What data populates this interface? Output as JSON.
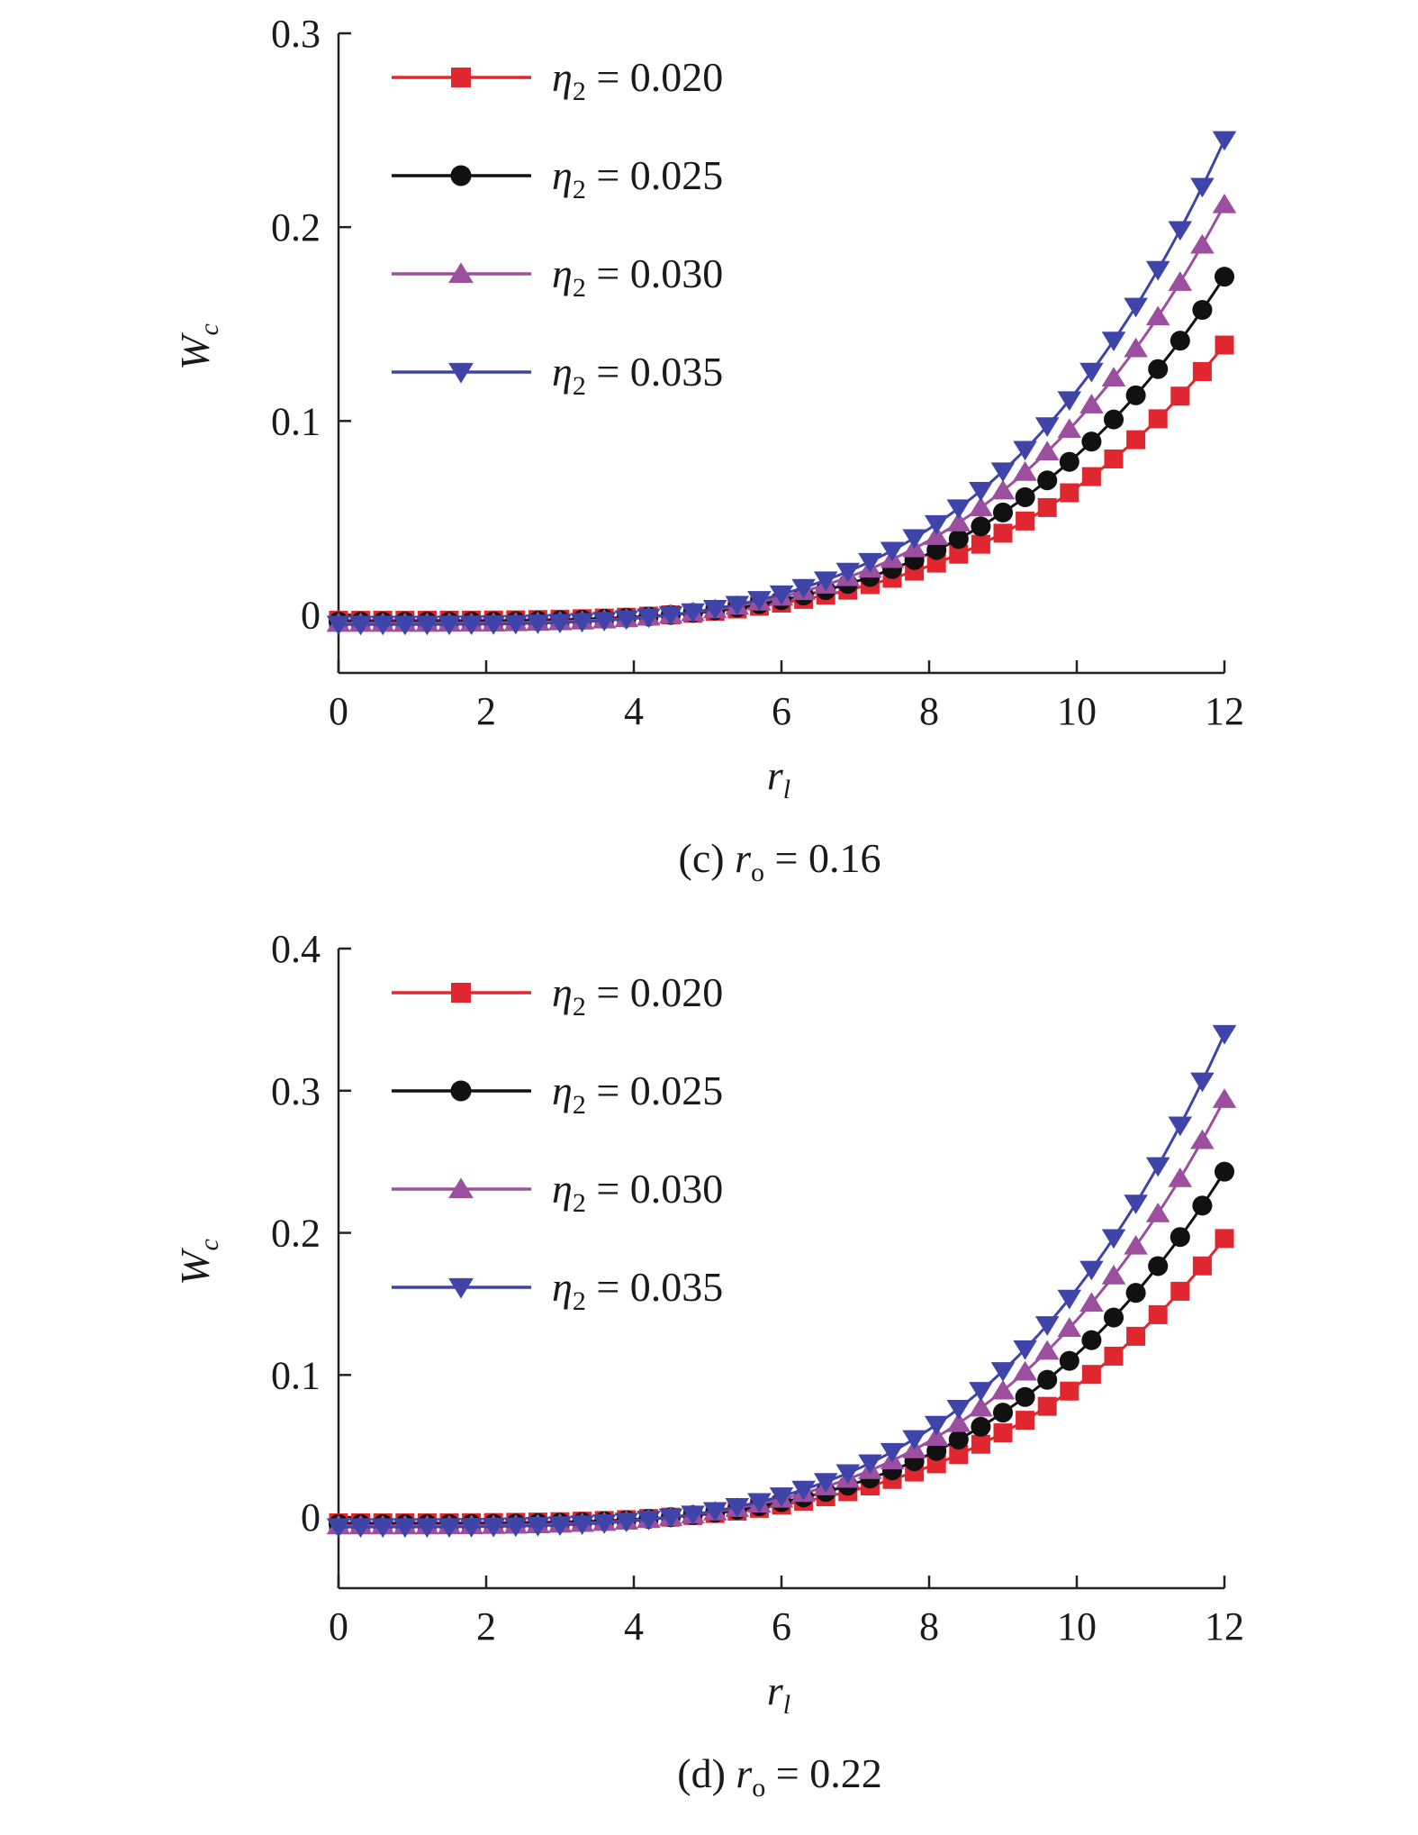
{
  "chart_data": [
    {
      "type": "line",
      "caption": {
        "prefix": "(c) ",
        "sym": "r",
        "sub": "o",
        "rest": " = 0.16"
      },
      "xlabel": {
        "sym": "r",
        "sub": "l"
      },
      "ylabel": {
        "sym": "W",
        "sub": "c"
      },
      "xlim": [
        0,
        12
      ],
      "ylim": [
        -0.03,
        0.3
      ],
      "x_ticks": [
        0,
        2,
        4,
        6,
        8,
        10,
        12
      ],
      "y_ticks": [
        0,
        0.1,
        0.2,
        0.3
      ],
      "x_tick_labels": [
        "0",
        "2",
        "4",
        "6",
        "8",
        "10",
        "12"
      ],
      "y_tick_labels": [
        "0",
        "0.1",
        "0.2",
        "0.3"
      ],
      "legend_position": "top-left",
      "grid": false,
      "series": [
        {
          "name": "η2 = 0.020",
          "label": {
            "sym": "η",
            "sub": "2",
            "rest": " = 0.020"
          },
          "color": "#e0262e",
          "marker": "square",
          "a": 0.142
        },
        {
          "name": "η2 = 0.025",
          "label": {
            "sym": "η",
            "sub": "2",
            "rest": " = 0.025"
          },
          "color": "#111111",
          "marker": "circle",
          "a": 0.178
        },
        {
          "name": "η2 = 0.030",
          "label": {
            "sym": "η",
            "sub": "2",
            "rest": " = 0.030"
          },
          "color": "#9b4f9e",
          "marker": "triangle-up",
          "a": 0.216
        },
        {
          "name": "η2 = 0.035",
          "label": {
            "sym": "η",
            "sub": "2",
            "rest": " = 0.035"
          },
          "color": "#3f44a8",
          "marker": "triangle-down",
          "a": 0.25
        }
      ]
    },
    {
      "type": "line",
      "caption": {
        "prefix": "(d) ",
        "sym": "r",
        "sub": "o",
        "rest": " = 0.22"
      },
      "xlabel": {
        "sym": "r",
        "sub": "l"
      },
      "ylabel": {
        "sym": "W",
        "sub": "c"
      },
      "xlim": [
        0,
        12
      ],
      "ylim": [
        -0.05,
        0.4
      ],
      "x_ticks": [
        0,
        2,
        4,
        6,
        8,
        10,
        12
      ],
      "y_ticks": [
        0,
        0.1,
        0.2,
        0.3,
        0.4
      ],
      "x_tick_labels": [
        "0",
        "2",
        "4",
        "6",
        "8",
        "10",
        "12"
      ],
      "y_tick_labels": [
        "0",
        "0.1",
        "0.2",
        "0.3",
        "0.4"
      ],
      "legend_position": "top-left",
      "grid": false,
      "series": [
        {
          "name": "η2 = 0.020",
          "label": {
            "sym": "η",
            "sub": "2",
            "rest": " = 0.020"
          },
          "color": "#e0262e",
          "marker": "square",
          "a": 0.2
        },
        {
          "name": "η2 = 0.025",
          "label": {
            "sym": "η",
            "sub": "2",
            "rest": " = 0.025"
          },
          "color": "#111111",
          "marker": "circle",
          "a": 0.248
        },
        {
          "name": "η2 = 0.030",
          "label": {
            "sym": "η",
            "sub": "2",
            "rest": " = 0.030"
          },
          "color": "#9b4f9e",
          "marker": "triangle-up",
          "a": 0.3
        },
        {
          "name": "η2 = 0.035",
          "label": {
            "sym": "η",
            "sub": "2",
            "rest": " = 0.035"
          },
          "color": "#3f44a8",
          "marker": "triangle-down",
          "a": 0.347
        }
      ]
    }
  ]
}
